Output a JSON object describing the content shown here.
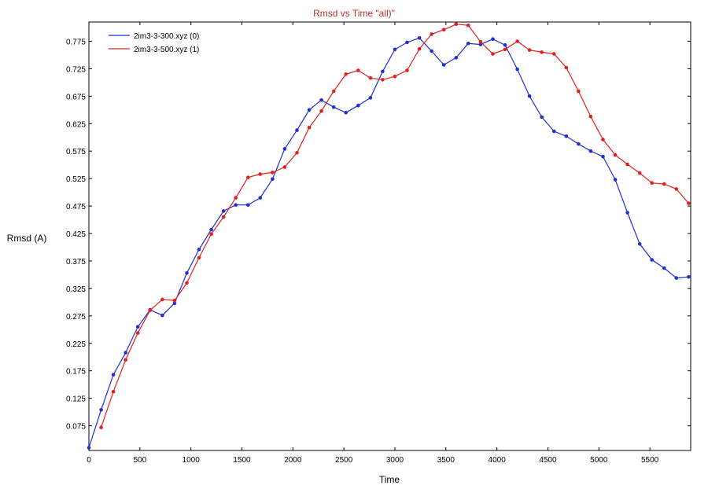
{
  "chart_data": {
    "type": "line",
    "title": "Rmsd vs Time \"all)\"",
    "xlabel": "Time",
    "ylabel": "Rmsd (A)",
    "xlim": [
      0,
      5900
    ],
    "ylim": [
      0.03,
      0.81
    ],
    "xticks": [
      0,
      500,
      1000,
      1500,
      2000,
      2500,
      3000,
      3500,
      4000,
      4500,
      5000,
      5500
    ],
    "xtick_labels": [
      "0",
      "500",
      "1000",
      "1500",
      "2000",
      "2500",
      "3000",
      "3500",
      "4000",
      "4500",
      "5000",
      "5500"
    ],
    "yticks": [
      0.075,
      0.125,
      0.175,
      0.225,
      0.275,
      0.325,
      0.375,
      0.425,
      0.475,
      0.525,
      0.575,
      0.625,
      0.675,
      0.725,
      0.775
    ],
    "ytick_labels": [
      "0.075",
      "0.125",
      "0.175",
      "0.225",
      "0.275",
      "0.325",
      "0.375",
      "0.425",
      "0.475",
      "0.525",
      "0.575",
      "0.625",
      "0.675",
      "0.725",
      "0.775"
    ],
    "grid": false,
    "legend_position": "top-left",
    "series": [
      {
        "name": "2im3-3-300.xyz (0)",
        "color": "#1f2fd0",
        "x": [
          0,
          120,
          240,
          360,
          480,
          600,
          720,
          840,
          960,
          1080,
          1200,
          1320,
          1440,
          1560,
          1680,
          1800,
          1920,
          2040,
          2160,
          2280,
          2400,
          2520,
          2640,
          2760,
          2880,
          3000,
          3120,
          3240,
          3360,
          3480,
          3600,
          3720,
          3840,
          3960,
          4080,
          4200,
          4320,
          4440,
          4560,
          4680,
          4800,
          4920,
          5040,
          5160,
          5280,
          5400,
          5520,
          5640,
          5760,
          5880
        ],
        "y": [
          0.035,
          0.104,
          0.168,
          0.208,
          0.255,
          0.286,
          0.276,
          0.298,
          0.353,
          0.396,
          0.432,
          0.466,
          0.477,
          0.477,
          0.49,
          0.524,
          0.579,
          0.613,
          0.65,
          0.668,
          0.655,
          0.645,
          0.658,
          0.672,
          0.72,
          0.76,
          0.773,
          0.781,
          0.757,
          0.732,
          0.745,
          0.771,
          0.769,
          0.779,
          0.768,
          0.724,
          0.675,
          0.637,
          0.611,
          0.602,
          0.588,
          0.575,
          0.565,
          0.523,
          0.463,
          0.406,
          0.377,
          0.362,
          0.344,
          0.346
        ]
      },
      {
        "name": "2im3-3-500.xyz (1)",
        "color": "#e02020",
        "x": [
          120,
          240,
          360,
          480,
          600,
          720,
          840,
          960,
          1080,
          1200,
          1320,
          1440,
          1560,
          1680,
          1800,
          1920,
          2040,
          2160,
          2280,
          2400,
          2520,
          2640,
          2760,
          2880,
          3000,
          3120,
          3240,
          3360,
          3480,
          3600,
          3720,
          3840,
          3960,
          4080,
          4200,
          4320,
          4440,
          4560,
          4680,
          4800,
          4920,
          5040,
          5160,
          5280,
          5400,
          5520,
          5640,
          5760,
          5880
        ],
        "y": [
          0.072,
          0.137,
          0.195,
          0.244,
          0.285,
          0.305,
          0.303,
          0.335,
          0.381,
          0.424,
          0.455,
          0.49,
          0.527,
          0.533,
          0.536,
          0.546,
          0.572,
          0.618,
          0.648,
          0.684,
          0.715,
          0.722,
          0.708,
          0.705,
          0.711,
          0.722,
          0.761,
          0.788,
          0.796,
          0.806,
          0.804,
          0.774,
          0.752,
          0.76,
          0.775,
          0.759,
          0.755,
          0.752,
          0.727,
          0.684,
          0.638,
          0.596,
          0.568,
          0.551,
          0.535,
          0.517,
          0.515,
          0.506,
          0.48
        ]
      }
    ]
  }
}
